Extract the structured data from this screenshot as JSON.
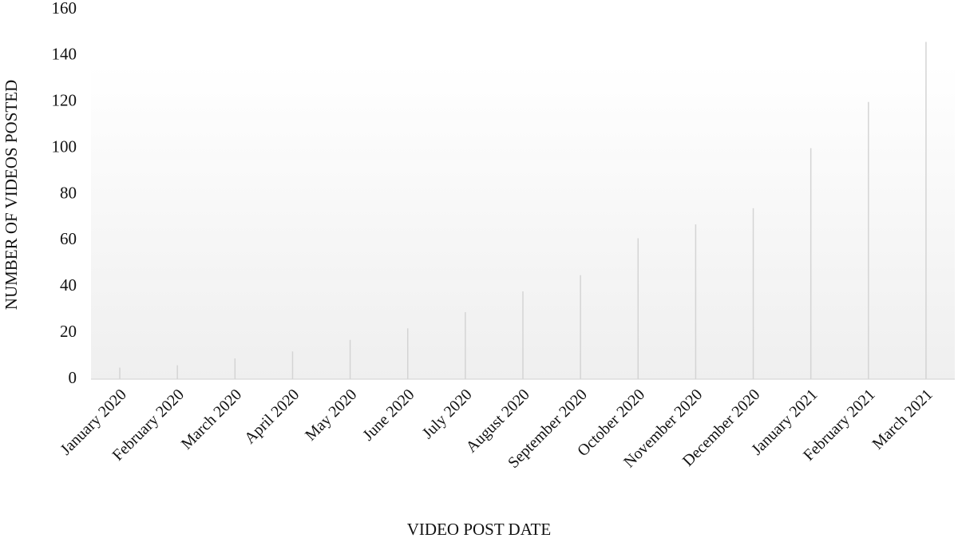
{
  "chart_data": {
    "type": "line",
    "x_label": "VIDEO POST DATE",
    "y_label": "NUMBER OF VIDEOS POSTED",
    "categories": [
      "January 2020",
      "February 2020",
      "March 2020",
      "April 2020",
      "May 2020",
      "June 2020",
      "July 2020",
      "August 2020",
      "September 2020",
      "October 2020",
      "November 2020",
      "December 2020",
      "January 2021",
      "February 2021",
      "March 2021"
    ],
    "values": [
      5,
      6,
      9,
      12,
      17,
      22,
      29,
      38,
      45,
      61,
      67,
      74,
      100,
      120,
      146
    ],
    "color": "#6e6e6e",
    "drop_lines": true,
    "ylim": [
      0,
      160
    ],
    "yticks": [
      0,
      20,
      40,
      60,
      80,
      100,
      120,
      140,
      160
    ],
    "grid": false
  }
}
